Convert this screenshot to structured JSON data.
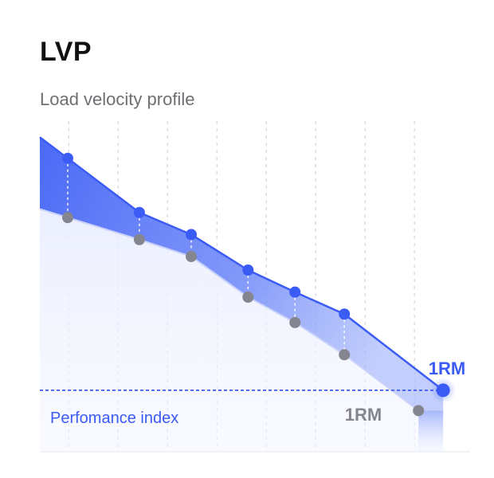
{
  "header": {
    "title": "LVP",
    "subtitle": "Load velocity profile"
  },
  "chart_data": {
    "type": "line",
    "title": "LVP",
    "subtitle": "Load velocity profile",
    "grid": true,
    "series": [
      {
        "color": "#3b5bf5",
        "points": [
          {
            "x": 1,
            "y": 8.5
          },
          {
            "x": 2.45,
            "y": 6.9
          },
          {
            "x": 3.5,
            "y": 6.25
          },
          {
            "x": 4.65,
            "y": 5.2
          },
          {
            "x": 5.6,
            "y": 4.55
          },
          {
            "x": 6.6,
            "y": 3.9
          },
          {
            "x": 8.6,
            "y": 1.65
          }
        ],
        "end_label": "1RM"
      },
      {
        "color": "#85858f",
        "points": [
          {
            "x": 1,
            "y": 6.75
          },
          {
            "x": 2.45,
            "y": 6.1
          },
          {
            "x": 3.5,
            "y": 5.6
          },
          {
            "x": 4.65,
            "y": 4.4
          },
          {
            "x": 5.6,
            "y": 3.65
          },
          {
            "x": 6.6,
            "y": 2.7
          },
          {
            "x": 8.1,
            "y": 1.05
          }
        ],
        "end_label": "1RM"
      }
    ],
    "reference_line": {
      "y": 1.65,
      "label": "Perfomance index"
    },
    "colors": {
      "primary": "#3b5bf5",
      "secondary": "#85858f",
      "band": "#5b78f7",
      "reference": "#3b5bf5"
    }
  }
}
